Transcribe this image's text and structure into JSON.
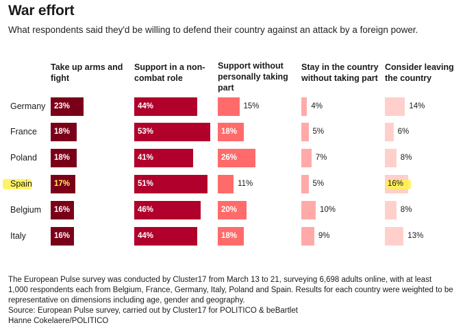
{
  "header": {
    "title": "War effort",
    "subtitle": "What respondents said they'd be willing to defend their country against an attack by a foreign power."
  },
  "chart_data": {
    "type": "table",
    "unit": "%",
    "highlighted_country": "Spain",
    "columns": [
      {
        "label": "Take up arms and fight",
        "color": "#7a0019"
      },
      {
        "label": "Support in a non-combat role",
        "color": "#b0002b"
      },
      {
        "label": "Support without personally taking part",
        "color": "#ff6b6b"
      },
      {
        "label": "Stay in the country without taking part",
        "color": "#ffaaa8"
      },
      {
        "label": "Consider leaving the country",
        "color": "#ffd0cb"
      }
    ],
    "countries": [
      "Germany",
      "France",
      "Poland",
      "Spain",
      "Belgium",
      "Italy"
    ],
    "values": [
      [
        23,
        44,
        15,
        4,
        14
      ],
      [
        18,
        53,
        18,
        5,
        6
      ],
      [
        18,
        41,
        26,
        7,
        8
      ],
      [
        17,
        51,
        11,
        5,
        16
      ],
      [
        16,
        46,
        20,
        10,
        8
      ],
      [
        16,
        44,
        18,
        9,
        13
      ]
    ],
    "labels": [
      [
        "23%",
        "44%",
        "15%",
        "4%",
        "14%"
      ],
      [
        "18%",
        "53%",
        "18%",
        "5%",
        "6%"
      ],
      [
        "18%",
        "41%",
        "26%",
        "7%",
        "8%"
      ],
      [
        "17%",
        "51%",
        "11%",
        "5%",
        "16%"
      ],
      [
        "16%",
        "46%",
        "20%",
        "10%",
        "8%"
      ],
      [
        "16%",
        "44%",
        "18%",
        "9%",
        "13%"
      ]
    ]
  },
  "footnote": {
    "methodology": "The European Pulse survey was conducted by Cluster17 from March 13 to 21, surveying 6,698 adults online, with at least 1,000 respondents each from Belgium, France, Germany, Italy, Poland and Spain. Results for each country were weighted to be representative on dimensions including age, gender and geography.",
    "source": "Source: European Pulse survey, carried out by Cluster17 for POLITICO & beBartlet",
    "credit": "Hanne Cokelaere/POLITICO"
  }
}
